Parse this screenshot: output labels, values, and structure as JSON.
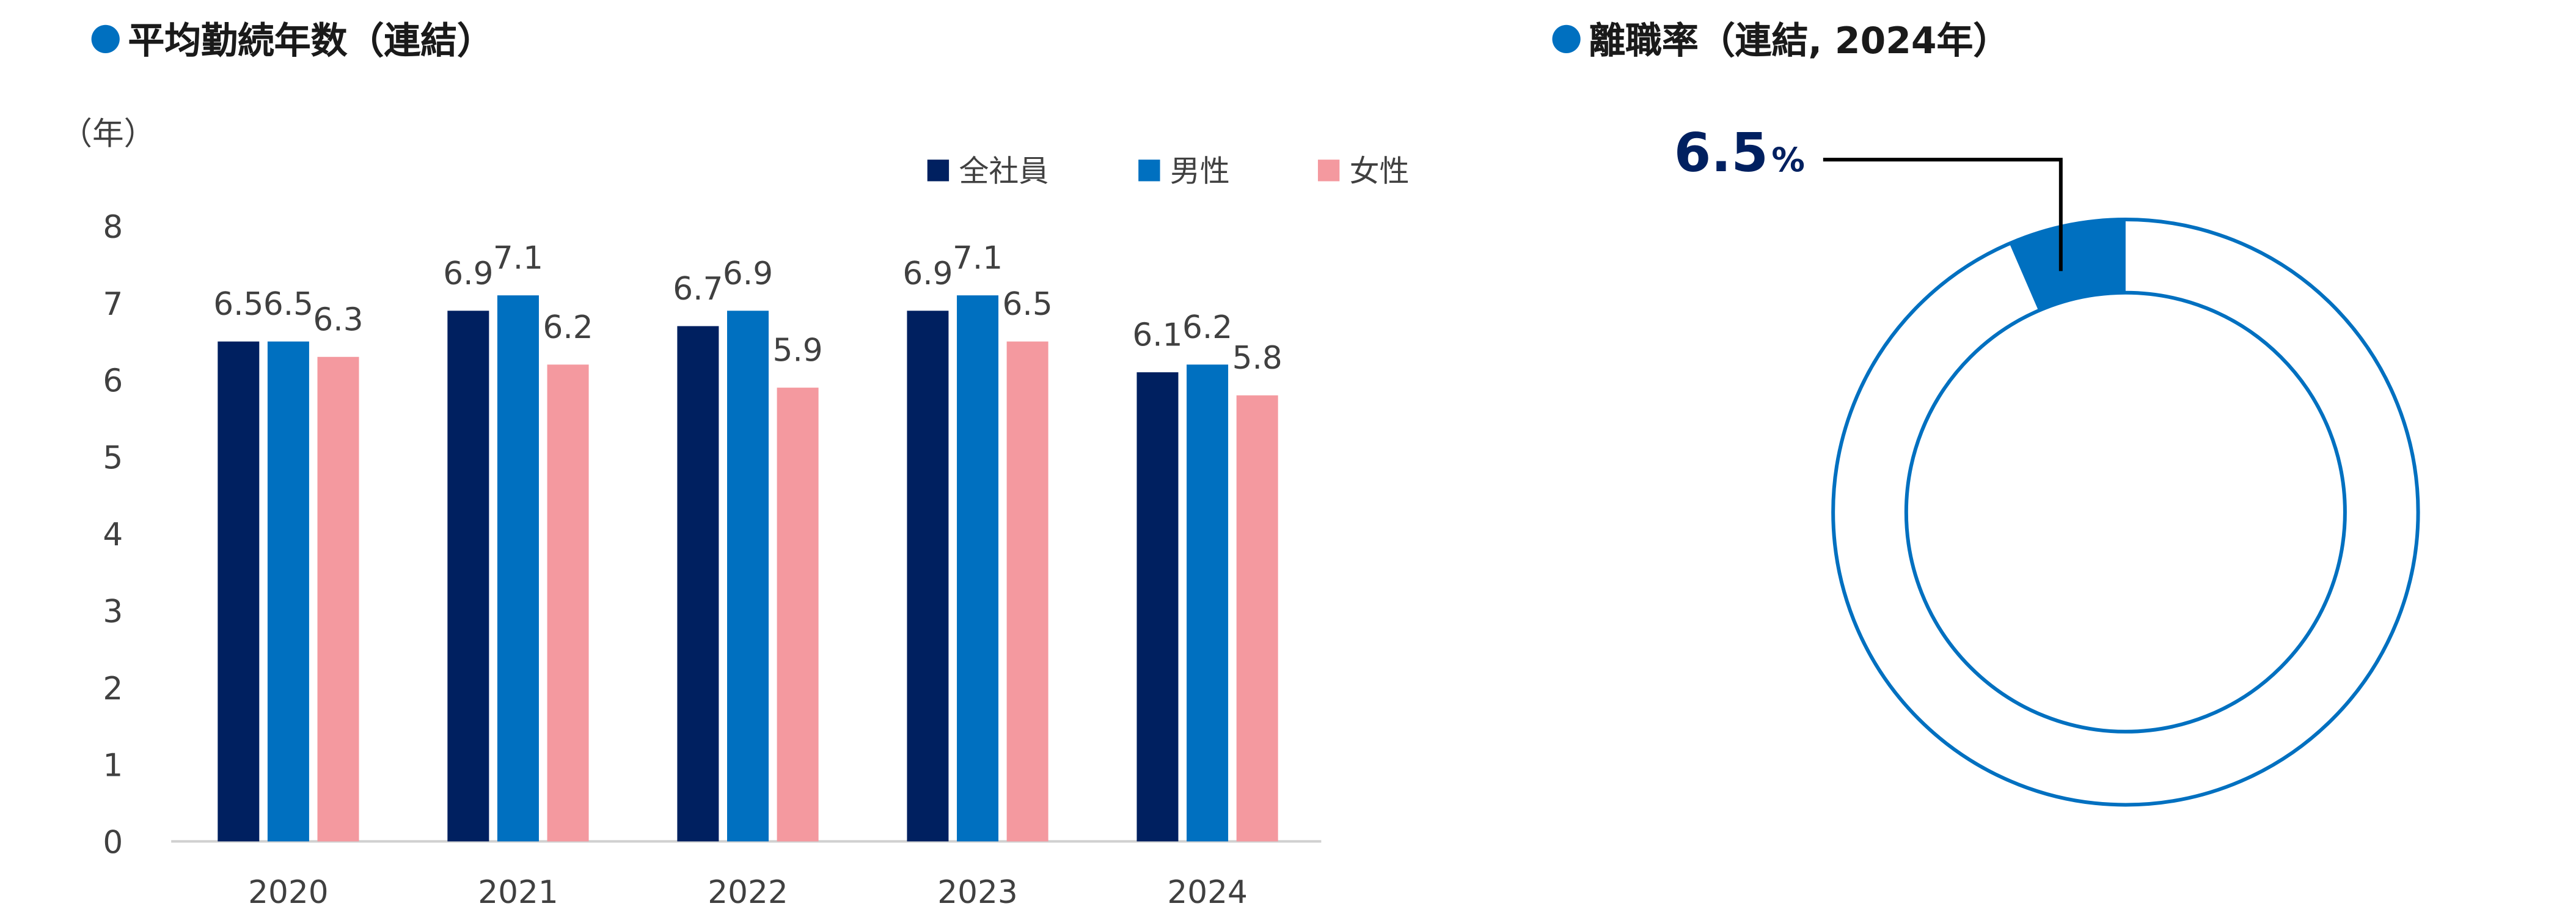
{
  "left_title": "平均勤続年数（連結）",
  "right_title": "離職率（連結, 2024年）",
  "chart_data": [
    {
      "type": "bar",
      "title": "平均勤続年数（連結）",
      "ylabel": "（年）",
      "categories": [
        "2020",
        "2021",
        "2022",
        "2023",
        "2024"
      ],
      "series": [
        {
          "name": "全社員",
          "color": "#002060",
          "values": [
            6.5,
            6.9,
            6.7,
            6.9,
            6.1
          ]
        },
        {
          "name": "男性",
          "color": "#0070C0",
          "values": [
            6.5,
            7.1,
            6.9,
            7.1,
            6.2
          ]
        },
        {
          "name": "女性",
          "color": "#F4999F",
          "values": [
            6.3,
            6.2,
            5.9,
            6.5,
            5.8
          ]
        }
      ],
      "ylim": [
        0,
        8
      ],
      "yticks": [
        "0",
        "1",
        "2",
        "3",
        "4",
        "5",
        "6",
        "7",
        "8"
      ],
      "legend_position": "top-right",
      "grid": false
    },
    {
      "type": "pie",
      "subtype": "donut",
      "title": "離職率（連結, 2024年）",
      "values": [
        6.5
      ],
      "max": 100,
      "value_label": "6.5",
      "unit": "%",
      "colors": {
        "slice": "#0070C0",
        "ring": "#0070C0",
        "label": "#002060"
      }
    }
  ]
}
